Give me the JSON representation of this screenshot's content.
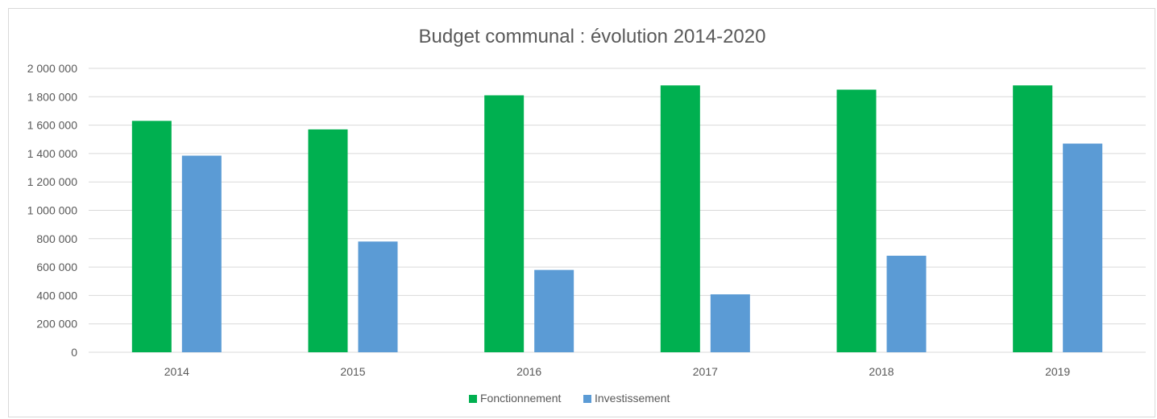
{
  "chart_data": {
    "type": "bar",
    "title": "Budget communal : évolution 2014-2020",
    "categories": [
      "2014",
      "2015",
      "2016",
      "2017",
      "2018",
      "2019"
    ],
    "series": [
      {
        "name": "Fonctionnement",
        "color": "#00b050",
        "values": [
          1630000,
          1570000,
          1810000,
          1880000,
          1850000,
          1880000
        ]
      },
      {
        "name": "Investissement",
        "color": "#5b9bd5",
        "values": [
          1385000,
          780000,
          580000,
          408000,
          680000,
          1470000
        ]
      }
    ],
    "ylim": [
      0,
      2000000
    ],
    "yticks": [
      0,
      200000,
      400000,
      600000,
      800000,
      1000000,
      1200000,
      1400000,
      1600000,
      1800000,
      2000000
    ],
    "ytick_labels": [
      "0",
      "200 000",
      "400 000",
      "600 000",
      "800 000",
      "1 000 000",
      "1 200 000",
      "1 400 000",
      "1 600 000",
      "1 800 000",
      "2 000 000"
    ],
    "xlabel": "",
    "ylabel": "",
    "grid": true,
    "legend_position": "bottom",
    "colors": {
      "gridline": "#d9d9d9",
      "axis_text": "#595959",
      "title_text": "#595959"
    }
  }
}
